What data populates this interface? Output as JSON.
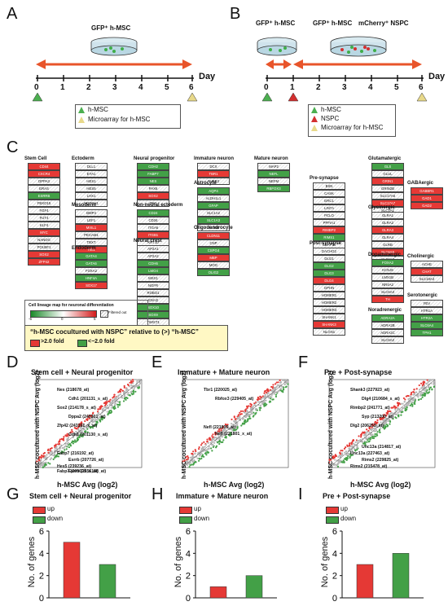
{
  "panels": {
    "A": "A",
    "B": "B",
    "C": "C",
    "D": "D",
    "E": "E",
    "F": "F",
    "G": "G",
    "H": "H",
    "I": "I"
  },
  "timeline": {
    "ticks": [
      "0",
      "1",
      "2",
      "3",
      "4",
      "5",
      "6"
    ],
    "day_label": "Day",
    "A_dish_label": "GFP⁺ h-MSC",
    "B_dish1_label": "GFP⁺ h-MSC",
    "B_dish2_label_a": "GFP⁺ h-MSC",
    "B_dish2_label_b": "mCherry⁺ NSPC"
  },
  "legendA": [
    "h-MSC",
    "Microarray for h-MSC"
  ],
  "legendB": [
    "h-MSC",
    "NSPC",
    "Microarray for h-MSC"
  ],
  "panelC": {
    "columns": [
      {
        "title": "Stem Cell",
        "genes": [
          "CD44",
          "CXCR4",
          "DPPA3",
          "ERAS",
          "ESRRB",
          "FBXO15",
          "FGF4",
          "FUT4",
          "KLF4",
          "MYC",
          "NANOG",
          "POU5F1",
          "SOX2",
          "ZFP42"
        ],
        "colors": [
          "up",
          "up",
          "",
          "",
          "dn",
          "",
          "",
          "",
          "",
          "up",
          "",
          "",
          "up",
          "up"
        ]
      },
      {
        "title": "Ectoderm",
        "genes": [
          "DLL1",
          "EYA1",
          "HES1",
          "HES5",
          "LHX1",
          "NOTCH1"
        ],
        "colors": [
          "",
          "",
          "",
          "",
          "",
          ""
        ]
      },
      {
        "title": "Mesoderm",
        "genes": [
          "BMP4",
          "LEF1",
          "MIXL1",
          "PECAM1",
          "TBXT",
          "TIE1"
        ],
        "colors": [
          "",
          "",
          "up",
          "",
          "",
          "up"
        ]
      },
      {
        "title": "Endoderm",
        "genes": [
          "GATA4",
          "GATA6",
          "FOXA2",
          "HNF4A",
          "SOX17"
        ],
        "colors": [
          "dn",
          "dn",
          "",
          "dn",
          "up"
        ]
      },
      {
        "title": "Neural progenitor",
        "genes": [
          "CDH2",
          "FABP7",
          "NES",
          "PAX6",
          "SOX2",
          "TNC"
        ],
        "colors": [
          "dn",
          "dn",
          "dn",
          "",
          "up",
          ""
        ]
      },
      {
        "title": "Non-neural ectoderm",
        "genes": [
          "CD24",
          "CD34",
          "ITGA6",
          "ITGB1",
          "KRT10"
        ],
        "colors": [
          "dn",
          "",
          "",
          "up",
          ""
        ]
      },
      {
        "title": "Neural crest",
        "genes": [
          "AP2A1",
          "AP2A2",
          "CDH6",
          "LMO4",
          "MSX1",
          "NGFR",
          "ROBO1",
          "SNAI2",
          "SOX10",
          "SOX9",
          "TWIST1",
          "TWIST2",
          "SNAI1",
          "ZEB2"
        ],
        "colors": [
          "",
          "",
          "dn",
          "dn",
          "",
          "",
          "",
          "",
          "dn",
          "dn",
          "",
          "",
          "",
          "up"
        ]
      },
      {
        "title": "Immature neuron",
        "genes": [
          "DCX",
          "TBR1",
          "TUBB3"
        ],
        "colors": [
          "",
          "up",
          ""
        ]
      },
      {
        "title": "Astrocyte",
        "genes": [
          "AQP4",
          "ALDH1L1",
          "GFAP",
          "SLC1A2",
          "SLC1A3",
          "S100B"
        ],
        "colors": [
          "dn",
          "",
          "dn",
          "",
          "dn",
          ""
        ]
      },
      {
        "title": "Oligodendrocyte",
        "genes": [
          "CLDN11",
          "CNP",
          "CSPG4",
          "MBP",
          "MOG",
          "OLIG2"
        ],
        "colors": [
          "up",
          "",
          "dn",
          "up",
          "",
          "dn"
        ]
      },
      {
        "title": "Mature neuron",
        "genes": [
          "MAP2",
          "NEFL",
          "NEFM",
          "RBFOX3"
        ],
        "colors": [
          "",
          "dn",
          "",
          "dn"
        ]
      },
      {
        "title": "Pre-synapse",
        "genes": [
          "BSN",
          "CASK",
          "ERC1",
          "LIN7A",
          "PCLO",
          "PPFIA1",
          "RIMBP2",
          "RIMS1",
          "SNAP25",
          "SYP",
          "UNC13A"
        ],
        "colors": [
          "",
          "",
          "",
          "",
          "",
          "",
          "up",
          "dn",
          "",
          "dn",
          "dn"
        ]
      },
      {
        "title": "Post-synapse",
        "genes": [
          "DACHG2",
          "DLG1",
          "DLG2",
          "DLG3",
          "DLG4",
          "GPHN",
          "HOMER1",
          "HOMER2",
          "HOMER3",
          "SHANK1",
          "SHANK3",
          "NLGN1"
        ],
        "colors": [
          "",
          "",
          "dn",
          "dn",
          "up",
          "",
          "",
          "",
          "",
          "",
          "up",
          ""
        ]
      },
      {
        "title": "Glutamatergic",
        "genes": [
          "GLS",
          "GLUL",
          "GRIN1",
          "GRIN2B",
          "SLC17A6",
          "SLC17A7",
          "SLC1A1"
        ],
        "colors": [
          "dn",
          "",
          "up",
          "",
          "",
          "up",
          ""
        ]
      },
      {
        "title": "Glycinergic",
        "genes": [
          "GLRA1",
          "GLRA2",
          "GLRA3",
          "GLRA4",
          "GLRB",
          "SLC6A5",
          "SLC6A9"
        ],
        "colors": [
          "",
          "",
          "up",
          "",
          "",
          "up",
          ""
        ]
      },
      {
        "title": "Dopaminergic",
        "genes": [
          "FOXA2",
          "KCNJ6",
          "LMX1B",
          "NR4A2",
          "SLC6A3",
          "TH"
        ],
        "colors": [
          "dn",
          "",
          "",
          "",
          "",
          "up"
        ]
      },
      {
        "title": "Noradrenergic",
        "genes": [
          "ADRA2A",
          "ADRA2B",
          "ADRA2C",
          "SLC6A2"
        ],
        "colors": [
          "dn",
          "",
          "",
          ""
        ]
      },
      {
        "title": "GABAergic",
        "genes": [
          "GABBR1",
          "GAD1",
          "GAD2"
        ],
        "colors": [
          "up",
          "up",
          "up"
        ]
      },
      {
        "title": "Cholinergic",
        "genes": [
          "ACHE",
          "CHAT",
          "SLC18A3"
        ],
        "colors": [
          "",
          "up",
          ""
        ]
      },
      {
        "title": "Serotonergic",
        "genes": [
          "FEV",
          "HTR1A",
          "HTR2A",
          "SLC6A4",
          "TPH1"
        ],
        "colors": [
          "",
          "",
          "dn",
          "dn",
          "dn"
        ]
      }
    ],
    "colormap_title": "Cell lineage map for neuronal differentiation",
    "colormap_ticks": [
      "-5",
      "0",
      "5"
    ],
    "colormap_filtered": "Filtered out",
    "note_title": "“h-MSC cocultured with NSPC” relative to (>) “h-MSC”",
    "note_up": ">2.0 fold",
    "note_down": "<−2.0 fold"
  },
  "scatters": {
    "D": {
      "title": "Stem cell + Neural progenitor",
      "labels": [
        "Nes (218678_at)",
        "Cdh1 (201131_s_at)",
        "Sox2 (214178_s_at)",
        "Dppa2 (240301_at)",
        "Zfp42 (243161_x_at)",
        "Cdh1 (201130_s_at)",
        "Fabp7 (216192_at)",
        "Esrrb (207726_at)",
        "Hes5 (239236_at)",
        "Esrrb (1555158_at)",
        "Fabp7 (205029_s_at)"
      ]
    },
    "E": {
      "title": "Immature + Mature neuron",
      "labels": [
        "Tbr1 (220025_at)",
        "Rbfox3 (229405_at)",
        "Nefl (221805_at)",
        "Nefl (221801_x_at)"
      ]
    },
    "F": {
      "title": "Pre + Post-synapse",
      "labels": [
        "Shank3 (227923_at)",
        "Dlg4 (210684_s_at)",
        "Rimbp2 (241771_at)",
        "Syp (213200_at)",
        "Dlg2 (206253_at)",
        "Unc13a (214817_at)",
        "Unc13a (227463_at)",
        "Rims2 (229825_at)",
        "Rims2 (215478_at)"
      ]
    },
    "xlabel": "h-MSC  Avg (log2)",
    "ylabel": "h-MSC cocultured with NSPC Avg (log2)",
    "ticks": [
      "2",
      "3.6",
      "5.2",
      "6.8",
      "8.4",
      "10",
      "11.6",
      "13.2",
      "14.8"
    ]
  },
  "chart_data": [
    {
      "type": "bar",
      "title": "Stem cell + Neural progenitor",
      "categories": [
        "up",
        "down"
      ],
      "values": [
        5,
        3
      ],
      "ylabel": "No. of genes",
      "ylim": [
        0,
        6
      ],
      "colors": [
        "#e53935",
        "#43a047"
      ],
      "legend": [
        "up",
        "down"
      ]
    },
    {
      "type": "bar",
      "title": "Immature + Mature neuron",
      "categories": [
        "up",
        "down"
      ],
      "values": [
        1,
        2
      ],
      "ylabel": "No. of genes",
      "ylim": [
        0,
        6
      ],
      "colors": [
        "#e53935",
        "#43a047"
      ],
      "legend": [
        "up",
        "down"
      ]
    },
    {
      "type": "bar",
      "title": "Pre + Post-synapse",
      "categories": [
        "up",
        "down"
      ],
      "values": [
        3,
        4
      ],
      "ylabel": "No. of genes",
      "ylim": [
        0,
        6
      ],
      "colors": [
        "#e53935",
        "#43a047"
      ],
      "legend": [
        "up",
        "down"
      ]
    }
  ],
  "colors": {
    "arrow": "#e8542a",
    "up": "#e53935",
    "down": "#43a047",
    "note_bg": "#fff8c4"
  }
}
